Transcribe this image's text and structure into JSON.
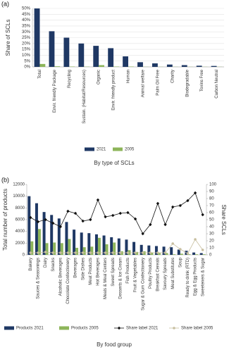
{
  "chart_data": [
    {
      "type": "bar",
      "panel_label": "(a)",
      "ylabel": "Share of SCLs",
      "xlabel": "By type of SCLs",
      "categories": [
        "Total",
        "Envir. friendly Package",
        "Recycling",
        "Sustain. (Habitat/Resources)",
        "Organic",
        "Envir. friendly product",
        "Human",
        "Animal welfare",
        "Palm Oil Free",
        "Charity",
        "Biodegradable",
        "Toxins Free",
        "Carbon Neutral"
      ],
      "series": [
        {
          "name": "2021",
          "color": "#1f3864",
          "values": [
            50,
            30.5,
            25,
            20,
            18,
            16,
            9,
            4,
            3,
            2,
            1.5,
            1,
            0.8
          ]
        },
        {
          "name": "2005",
          "color": "#8db55a",
          "values": [
            2.5,
            0.5,
            0.3,
            0.2,
            1.5,
            0.3,
            0.3,
            0.1,
            0.1,
            0.1,
            0.1,
            0.1,
            0.1
          ]
        }
      ],
      "ylim": [
        0,
        50
      ],
      "yticks": [
        {
          "value": 0,
          "label": "0%"
        },
        {
          "value": 5,
          "label": "5%"
        },
        {
          "value": 10,
          "label": "10%"
        },
        {
          "value": 15,
          "label": "15%"
        },
        {
          "value": 20,
          "label": "20%"
        },
        {
          "value": 25,
          "label": "25%"
        },
        {
          "value": 30,
          "label": "30%"
        },
        {
          "value": 35,
          "label": "35%"
        },
        {
          "value": 40,
          "label": "40%"
        },
        {
          "value": 45,
          "label": "45%"
        },
        {
          "value": 50,
          "label": "50%"
        }
      ],
      "grid": true
    },
    {
      "type": "bar",
      "panel_label": "(b)",
      "ylabel": "Total number of products",
      "y2label": "Share SCLs",
      "xlabel": "By food group",
      "categories": [
        "Bakery",
        "Sauces & Seasonings",
        "Dairy",
        "Snacks",
        "Alcoholic Beverages",
        "Chocolate Confectionery",
        "Beverages",
        "Side Dishes",
        "Meat Products",
        "Hot Beverages",
        "Meals & Meal Centers",
        "Sweet Spreads",
        "Desserts & Ice Cream",
        "Fish Products",
        "Fruit & Vegetables",
        "Sugar & Gum Confectionery",
        "Poultry Products",
        "Breakfast Cereals",
        "Savoury Spreads",
        "Meat Substitutes",
        "Soup",
        "Ready to drink (RTD)",
        "Egg & Egg Products",
        "Sweeteners & Sugar"
      ],
      "series": [
        {
          "name": "Products 2021",
          "color": "#1f3864",
          "values": [
            10000,
            8800,
            7300,
            6800,
            6200,
            5600,
            4300,
            3800,
            3700,
            3500,
            3300,
            3000,
            2800,
            2600,
            2200,
            1700,
            1600,
            1500,
            1400,
            1300,
            900,
            700,
            400,
            300
          ]
        },
        {
          "name": "Products 2005",
          "color": "#8db55a",
          "values": [
            2300,
            4400,
            2000,
            2100,
            2000,
            2700,
            1200,
            1300,
            1400,
            2900,
            1800,
            2100,
            600,
            800,
            500,
            600,
            400,
            300,
            300,
            100,
            200,
            100,
            100,
            100
          ]
        },
        {
          "name": "Share label 2021",
          "type": "line",
          "axis": "y2",
          "marker": "diamond",
          "color": "#111111",
          "values": [
            53,
            47,
            50,
            45,
            40,
            62,
            59,
            48,
            50,
            78,
            54,
            56,
            59,
            60,
            51,
            30,
            43,
            73,
            43,
            68,
            70,
            77,
            88,
            57
          ]
        },
        {
          "name": "Share label 2005",
          "type": "line",
          "axis": "y2",
          "marker": "circle",
          "color": "#c8bfa0",
          "values": [
            3,
            3,
            4,
            3,
            3,
            3,
            3,
            3,
            3,
            3,
            3,
            3,
            3,
            3,
            3,
            3,
            3,
            3,
            3,
            16,
            8,
            2,
            22,
            7
          ]
        }
      ],
      "ylim": [
        0,
        12000
      ],
      "yticks": [
        0,
        2000,
        4000,
        6000,
        8000,
        10000,
        12000
      ],
      "y2lim": [
        0,
        100
      ],
      "y2ticks": [
        0,
        10,
        20,
        30,
        40,
        50,
        60,
        70,
        80,
        90,
        100
      ],
      "grid": false
    }
  ]
}
